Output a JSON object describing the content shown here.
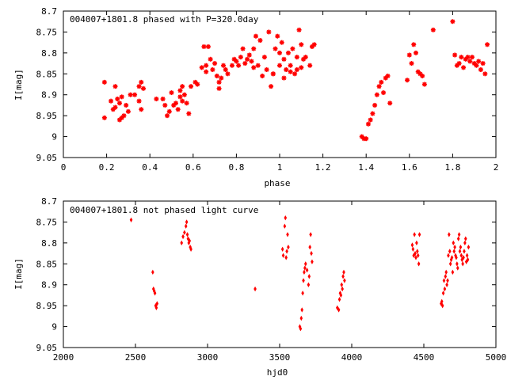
{
  "colors": {
    "points": "#ff0000",
    "axis": "#000000",
    "background": "#ffffff"
  },
  "chart_data": [
    {
      "type": "scatter",
      "title": "004007+1801.8 phased with P=320.0day",
      "xlabel": "phase",
      "ylabel": "I[mag]",
      "xlim": [
        0,
        2
      ],
      "ylim": [
        9.05,
        8.7
      ],
      "y_inverted": true,
      "marker": "star",
      "xticks": [
        "0",
        "0.2",
        "0.4",
        "0.6",
        "0.8",
        "1",
        "1.2",
        "1.4",
        "1.6",
        "1.8",
        "2"
      ],
      "yticks": [
        "8.7",
        "8.75",
        "8.8",
        "8.85",
        "8.9",
        "8.95",
        "9",
        "9.05"
      ],
      "series": [
        {
          "name": "phased",
          "x": [
            0.19,
            0.19,
            0.22,
            0.23,
            0.24,
            0.24,
            0.25,
            0.26,
            0.26,
            0.27,
            0.27,
            0.28,
            0.29,
            0.3,
            0.31,
            0.33,
            0.35,
            0.35,
            0.36,
            0.36,
            0.37,
            0.43,
            0.46,
            0.47,
            0.48,
            0.49,
            0.5,
            0.51,
            0.52,
            0.53,
            0.54,
            0.54,
            0.55,
            0.55,
            0.56,
            0.57,
            0.58,
            0.59,
            0.61,
            0.62,
            0.64,
            0.65,
            0.66,
            0.66,
            0.67,
            0.68,
            0.69,
            0.7,
            0.71,
            0.72,
            0.72,
            0.73,
            0.74,
            0.75,
            0.76,
            0.78,
            0.79,
            0.8,
            0.81,
            0.82,
            0.83,
            0.84,
            0.85,
            0.86,
            0.87,
            0.88,
            0.88,
            0.89,
            0.9,
            0.91,
            0.92,
            0.93,
            0.94,
            0.95,
            0.96,
            0.97,
            0.97,
            0.98,
            0.99,
            1.0,
            1.0,
            1.01,
            1.02,
            1.02,
            1.03,
            1.04,
            1.05,
            1.05,
            1.06,
            1.07,
            1.08,
            1.08,
            1.09,
            1.1,
            1.1,
            1.11,
            1.12,
            1.14,
            1.15,
            1.16,
            1.38,
            1.39,
            1.4,
            1.41,
            1.42,
            1.43,
            1.44,
            1.45,
            1.46,
            1.47,
            1.48,
            1.49,
            1.5,
            1.51,
            1.59,
            1.6,
            1.61,
            1.62,
            1.63,
            1.64,
            1.65,
            1.66,
            1.67,
            1.71,
            1.8,
            1.81,
            1.82,
            1.83,
            1.84,
            1.85,
            1.86,
            1.87,
            1.88,
            1.89,
            1.9,
            1.91,
            1.92,
            1.93,
            1.94,
            1.95,
            1.96
          ],
          "y": [
            8.955,
            8.87,
            8.915,
            8.935,
            8.88,
            8.93,
            8.91,
            8.96,
            8.92,
            8.905,
            8.955,
            8.95,
            8.925,
            8.94,
            8.9,
            8.9,
            8.915,
            8.88,
            8.87,
            8.935,
            8.885,
            8.91,
            8.91,
            8.925,
            8.95,
            8.94,
            8.895,
            8.925,
            8.92,
            8.935,
            8.905,
            8.89,
            8.915,
            8.88,
            8.9,
            8.92,
            8.945,
            8.88,
            8.87,
            8.875,
            8.835,
            8.785,
            8.845,
            8.83,
            8.785,
            8.815,
            8.84,
            8.825,
            8.855,
            8.87,
            8.885,
            8.86,
            8.83,
            8.84,
            8.85,
            8.83,
            8.815,
            8.82,
            8.83,
            8.81,
            8.79,
            8.825,
            8.815,
            8.805,
            8.82,
            8.79,
            8.835,
            8.76,
            8.83,
            8.77,
            8.855,
            8.81,
            8.84,
            8.75,
            8.88,
            8.85,
            8.85,
            8.79,
            8.76,
            8.83,
            8.8,
            8.775,
            8.815,
            8.86,
            8.84,
            8.8,
            8.845,
            8.83,
            8.79,
            8.85,
            8.81,
            8.84,
            8.745,
            8.78,
            8.835,
            8.815,
            8.81,
            8.83,
            8.785,
            8.78,
            9.0,
            9.005,
            9.005,
            8.97,
            8.96,
            8.945,
            8.925,
            8.9,
            8.88,
            8.87,
            8.895,
            8.86,
            8.855,
            8.92,
            8.865,
            8.805,
            8.825,
            8.78,
            8.8,
            8.845,
            8.85,
            8.855,
            8.875,
            8.745,
            8.725,
            8.805,
            8.83,
            8.825,
            8.81,
            8.835,
            8.815,
            8.81,
            8.82,
            8.81,
            8.825,
            8.83,
            8.82,
            8.84,
            8.825,
            8.85,
            8.78
          ]
        }
      ]
    },
    {
      "type": "scatter",
      "title": "004007+1801.8 not phased light curve",
      "xlabel": "hjd0",
      "ylabel": "I[mag]",
      "xlim": [
        2000,
        5000
      ],
      "ylim": [
        9.05,
        8.7
      ],
      "y_inverted": true,
      "marker": "diamond",
      "xticks": [
        "2000",
        "2500",
        "3000",
        "3500",
        "4000",
        "4500",
        "5000"
      ],
      "yticks": [
        "8.7",
        "8.75",
        "8.8",
        "8.85",
        "8.9",
        "8.95",
        "9",
        "9.05"
      ],
      "series": [
        {
          "name": "light curve",
          "x": [
            2470,
            2620,
            2625,
            2630,
            2635,
            2640,
            2645,
            2650,
            2820,
            2830,
            2840,
            2850,
            2855,
            2860,
            2865,
            2870,
            2875,
            2880,
            2885,
            3330,
            3520,
            3525,
            3535,
            3540,
            3545,
            3550,
            3555,
            3560,
            3640,
            3645,
            3650,
            3655,
            3660,
            3665,
            3670,
            3675,
            3680,
            3690,
            3700,
            3705,
            3710,
            3715,
            3720,
            3725,
            3900,
            3910,
            3915,
            3920,
            3925,
            3930,
            3935,
            3940,
            3945,
            3950,
            4420,
            4425,
            4430,
            4435,
            4440,
            4445,
            4450,
            4455,
            4460,
            4465,
            4470,
            4620,
            4625,
            4630,
            4635,
            4640,
            4645,
            4650,
            4655,
            4660,
            4665,
            4670,
            4675,
            4680,
            4685,
            4690,
            4695,
            4700,
            4705,
            4710,
            4715,
            4720,
            4725,
            4730,
            4735,
            4740,
            4745,
            4750,
            4755,
            4760,
            4765,
            4770,
            4775,
            4780,
            4785,
            4790,
            4795,
            4800,
            4805,
            4810
          ],
          "y": [
            8.745,
            8.87,
            8.91,
            8.915,
            8.92,
            8.95,
            8.955,
            8.945,
            8.8,
            8.785,
            8.775,
            8.76,
            8.75,
            8.78,
            8.79,
            8.8,
            8.795,
            8.81,
            8.815,
            8.91,
            8.815,
            8.83,
            8.76,
            8.74,
            8.835,
            8.82,
            8.78,
            8.81,
            9.0,
            9.005,
            8.98,
            8.96,
            8.92,
            8.89,
            8.87,
            8.86,
            8.85,
            8.865,
            8.9,
            8.88,
            8.81,
            8.78,
            8.825,
            8.845,
            8.955,
            8.96,
            8.935,
            8.92,
            8.925,
            8.9,
            8.91,
            8.88,
            8.87,
            8.89,
            8.805,
            8.815,
            8.83,
            8.78,
            8.825,
            8.835,
            8.8,
            8.82,
            8.83,
            8.85,
            8.78,
            8.945,
            8.94,
            8.95,
            8.92,
            8.89,
            8.91,
            8.88,
            8.87,
            8.9,
            8.89,
            8.83,
            8.78,
            8.82,
            8.85,
            8.84,
            8.835,
            8.87,
            8.8,
            8.82,
            8.81,
            8.83,
            8.835,
            8.85,
            8.86,
            8.79,
            8.78,
            8.82,
            8.81,
            8.83,
            8.84,
            8.85,
            8.835,
            8.82,
            8.8,
            8.79,
            8.845,
            8.83,
            8.84,
            8.81
          ]
        }
      ]
    }
  ]
}
